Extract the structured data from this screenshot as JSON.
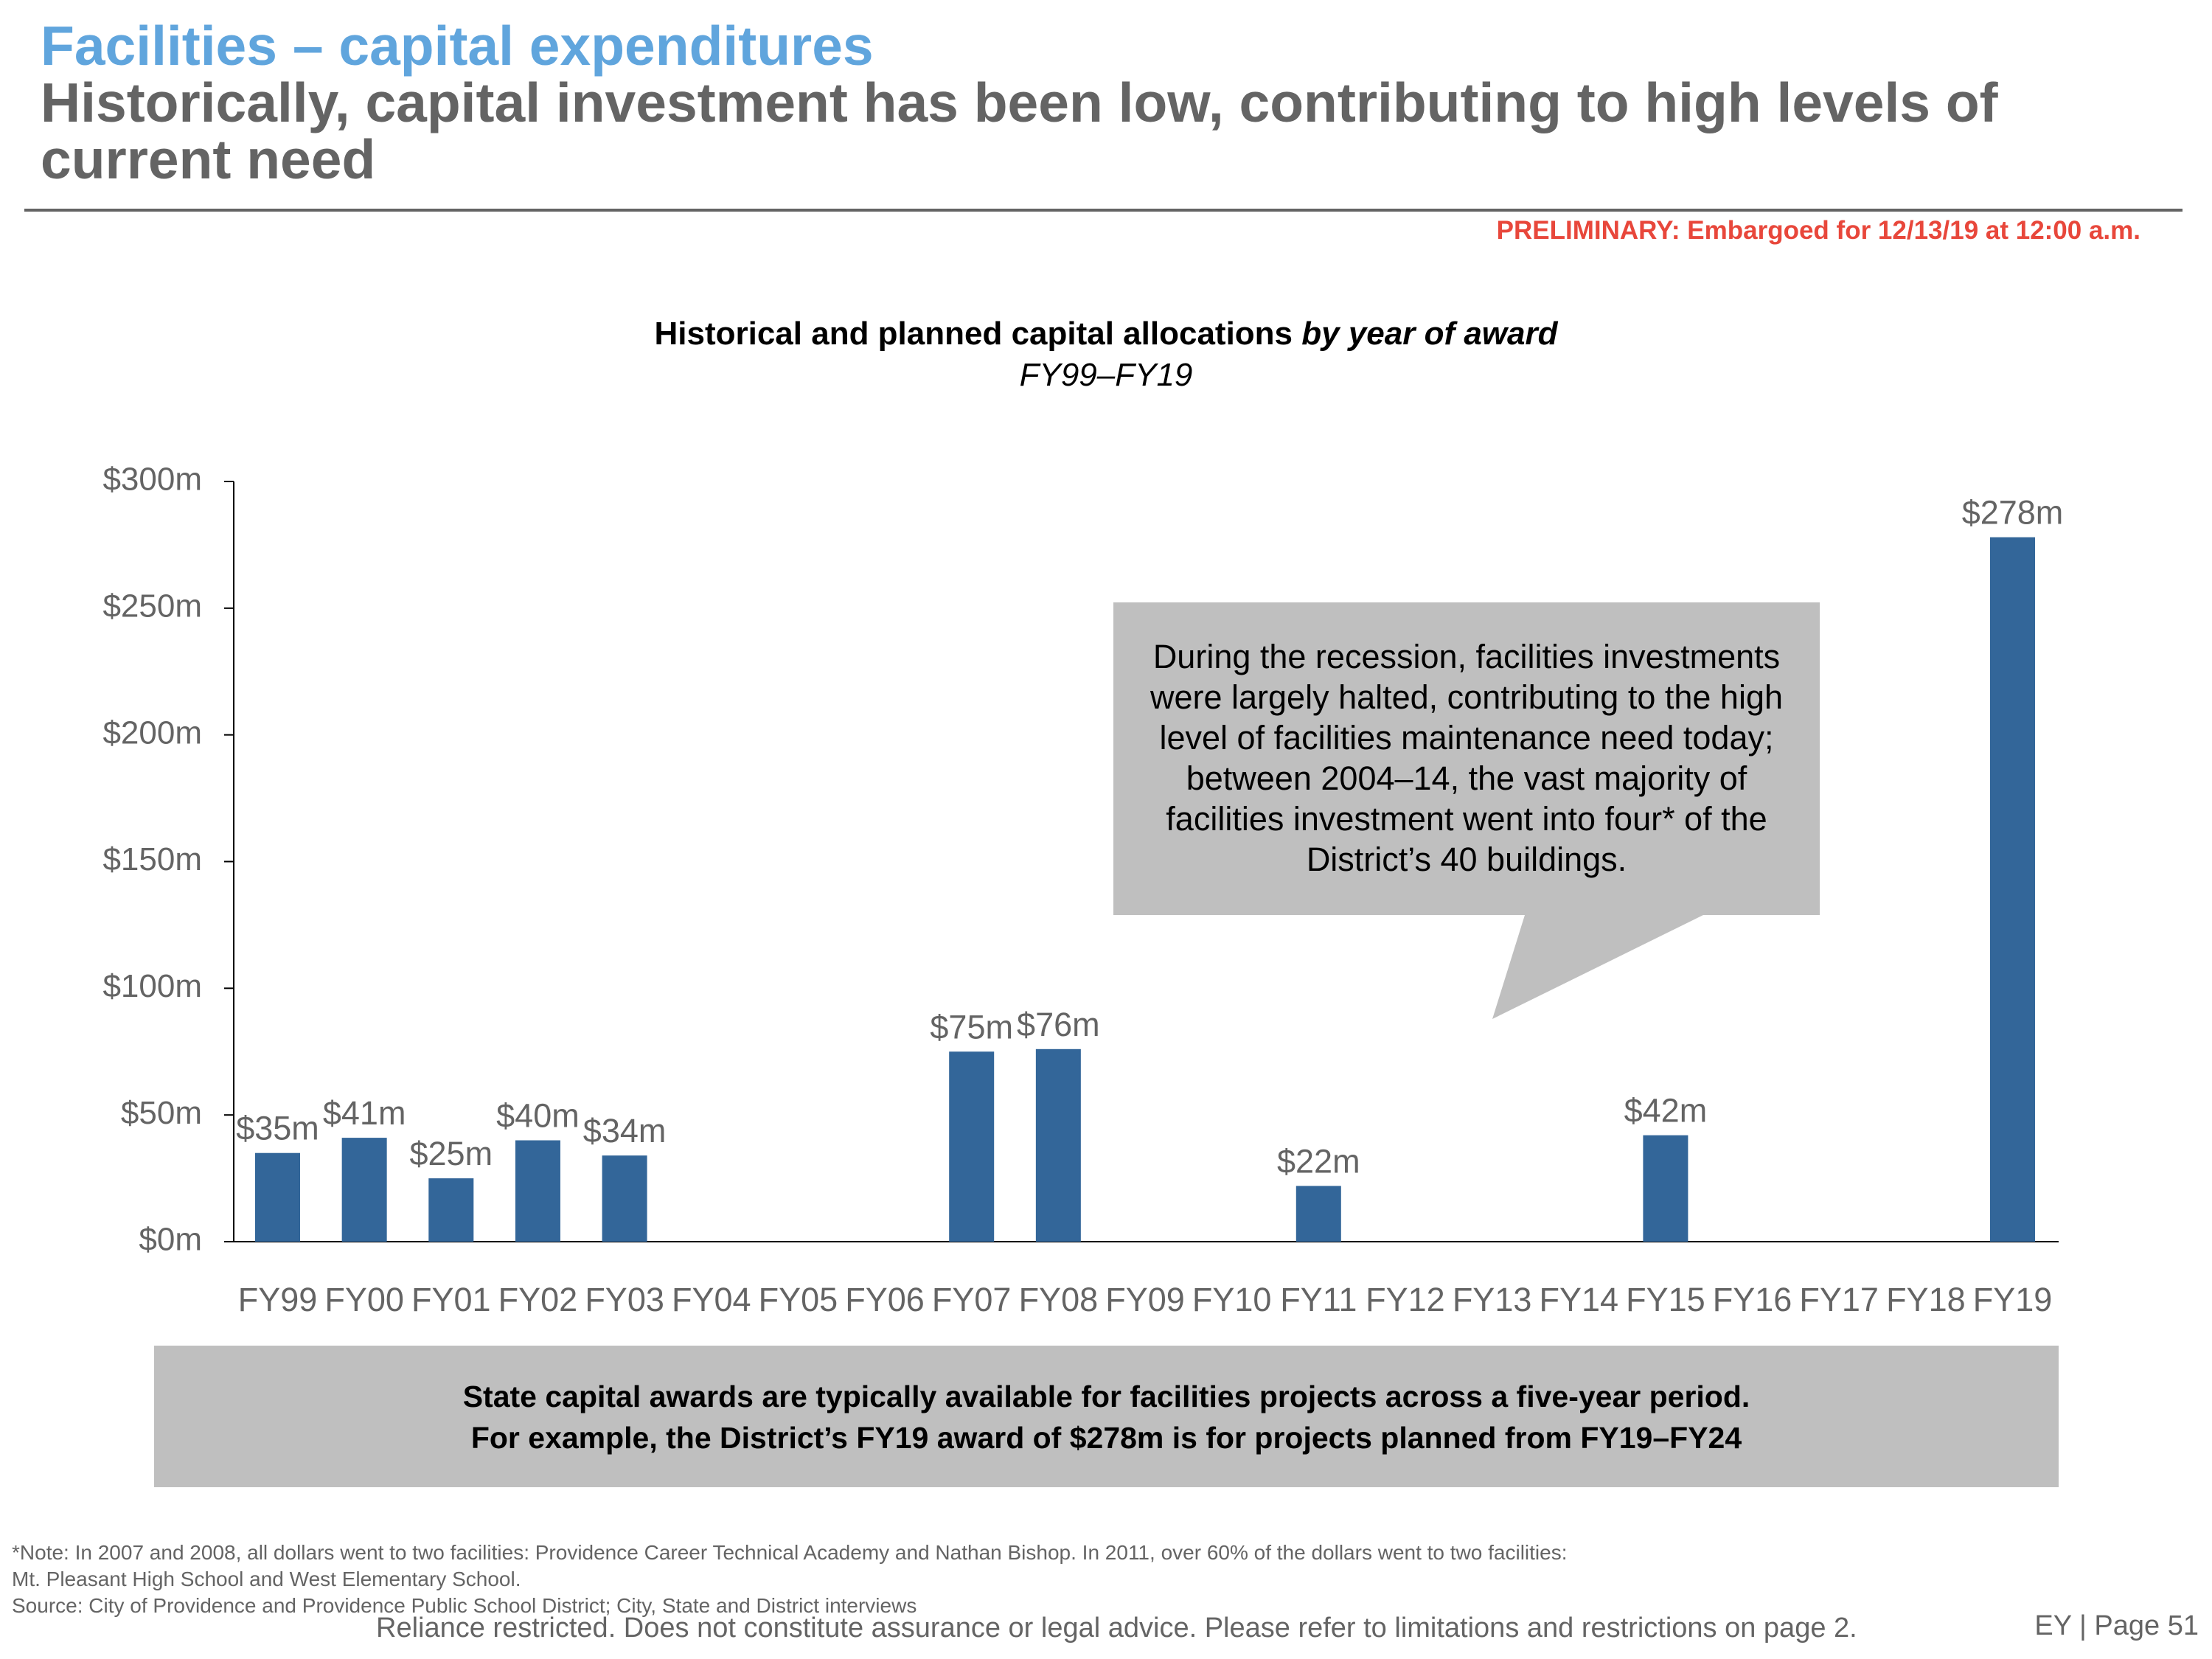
{
  "header": {
    "title": "Facilities – capital expenditures",
    "subtitle": "Historically, capital investment has been low, contributing to high levels of current need",
    "preliminary_notice": "PRELIMINARY: Embargoed for 12/13/19 at 12:00 a.m."
  },
  "colors": {
    "title_blue": "#60A5DD",
    "subtitle_gray": "#646464",
    "notice_red": "#E8473B",
    "bar_blue": "#336699",
    "callout_gray": "#BFBFBF"
  },
  "chart_data": {
    "type": "bar",
    "title_regular": "Historical and planned capital allocations ",
    "title_italic": "by year of award",
    "subtitle": "FY99–FY19",
    "xlabel": "",
    "ylabel": "",
    "ylim": [
      0,
      300
    ],
    "yticks": [
      0,
      50,
      100,
      150,
      200,
      250,
      300
    ],
    "ytick_labels": [
      "$0m",
      "$50m",
      "$100m",
      "$150m",
      "$200m",
      "$250m",
      "$300m"
    ],
    "categories": [
      "FY99",
      "FY00",
      "FY01",
      "FY02",
      "FY03",
      "FY04",
      "FY05",
      "FY06",
      "FY07",
      "FY08",
      "FY09",
      "FY10",
      "FY11",
      "FY12",
      "FY13",
      "FY14",
      "FY15",
      "FY16",
      "FY17",
      "FY18",
      "FY19"
    ],
    "values": [
      35,
      41,
      25,
      40,
      34,
      0,
      0,
      0,
      75,
      76,
      0,
      0,
      22,
      0,
      0,
      0,
      42,
      0,
      0,
      0,
      278
    ],
    "data_labels": [
      "$35m",
      "$41m",
      "$25m",
      "$40m",
      "$34m",
      "",
      "",
      "",
      "$75m",
      "$76m",
      "",
      "",
      "$22m",
      "",
      "",
      "",
      "$42m",
      "",
      "",
      "",
      "$278m"
    ],
    "grid": false,
    "legend": "none"
  },
  "callout": {
    "lines": [
      "During the recession, facilities investments",
      "were largely halted, contributing to the high",
      "level of facilities maintenance need today;",
      "between 2004–14, the vast majority of",
      "facilities investment went into four* of the",
      "District’s 40 buildings."
    ]
  },
  "summary_box": {
    "line1": "State capital awards are typically available for facilities projects across a five-year period.",
    "line2": "For example, the District’s FY19 award of $278m is for projects planned from FY19–FY24"
  },
  "footer": {
    "note": "*Note: In 2007 and 2008, all dollars went to two facilities: Providence Career Technical Academy and Nathan Bishop. In 2011, over 60% of the dollars went to two facilities: Mt. Pleasant High School and West Elementary School.",
    "source": "Source: City of Providence and Providence Public School District; City, State and District interviews",
    "disclaimer": "Reliance restricted. Does not constitute assurance or legal advice. Please refer to limitations and restrictions on page 2.",
    "page": "EY | Page 51"
  }
}
